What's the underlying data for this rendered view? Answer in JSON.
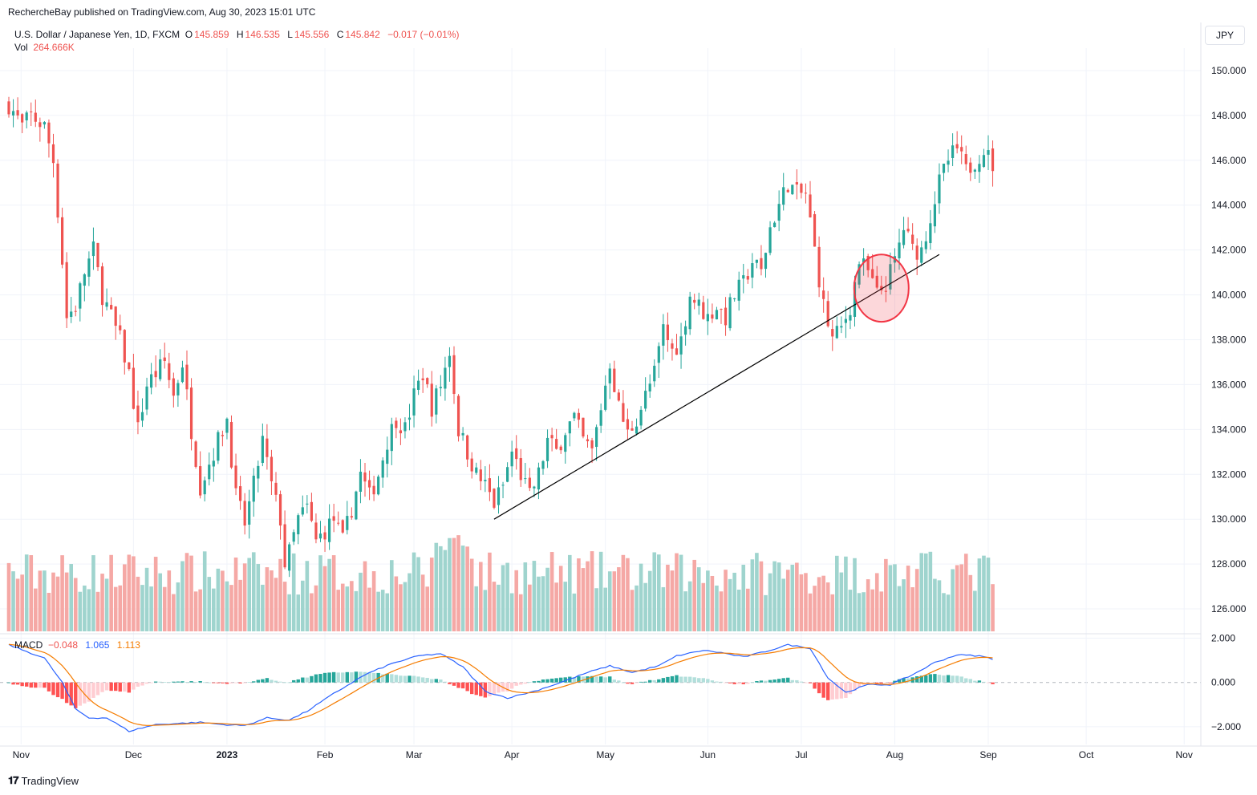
{
  "header": {
    "published": "RechercheBay published on TradingView.com, Aug 30, 2023 15:01 UTC",
    "symbol": "U.S. Dollar / Japanese Yen, 1D, FXCM",
    "open_label": "O",
    "open": "145.859",
    "high_label": "H",
    "high": "146.535",
    "low_label": "L",
    "low": "145.556",
    "close_label": "C",
    "close": "145.842",
    "change": "−0.017 (−0.01%)",
    "vol_label": "Vol",
    "vol": "264.666K",
    "currency": "JPY"
  },
  "macd_legend": {
    "label": "MACD",
    "hist": "−0.048",
    "macd": "1.065",
    "signal": "1.113"
  },
  "brand": "TradingView",
  "colors": {
    "up": "#26a69a",
    "down": "#ef5350",
    "volUp": "#9fd4ce",
    "volDown": "#f5a8a5",
    "macd": "#2962ff",
    "signal": "#f57c00",
    "trendline": "#000000",
    "circle": "#f23645"
  },
  "chart_data": {
    "type": "candlestick",
    "price_axis": {
      "min": 125,
      "max": 151,
      "ticks": [
        "150.000",
        "148.000",
        "146.000",
        "144.000",
        "142.000",
        "140.000",
        "138.000",
        "136.000",
        "134.000",
        "132.000",
        "130.000",
        "128.000",
        "126.000"
      ]
    },
    "macd_axis": {
      "min": -2.8,
      "max": 2.2,
      "ticks": [
        "2.000",
        "0.000",
        "−2.000"
      ]
    },
    "time_labels": [
      "Nov",
      "Dec",
      "2023",
      "Feb",
      "Mar",
      "Apr",
      "May",
      "Jun",
      "Jul",
      "Aug",
      "Sep",
      "Oct",
      "Nov"
    ],
    "anchors": [
      [
        0,
        148.5
      ],
      [
        3,
        147.5
      ],
      [
        5,
        148.0
      ],
      [
        8,
        147.5
      ],
      [
        10,
        146.0
      ],
      [
        12,
        141.5
      ],
      [
        13,
        139.0
      ],
      [
        15,
        139.5
      ],
      [
        17,
        141.0
      ],
      [
        19,
        142.0
      ],
      [
        21,
        140.0
      ],
      [
        23,
        139.0
      ],
      [
        25,
        138.0
      ],
      [
        27,
        136.5
      ],
      [
        29,
        134.0
      ],
      [
        31,
        136.0
      ],
      [
        33,
        136.5
      ],
      [
        35,
        137.0
      ],
      [
        37,
        135.5
      ],
      [
        39,
        137.0
      ],
      [
        41,
        134.0
      ],
      [
        43,
        131.5
      ],
      [
        45,
        132.5
      ],
      [
        47,
        133.5
      ],
      [
        49,
        134.5
      ],
      [
        51,
        131.0
      ],
      [
        53,
        129.8
      ],
      [
        55,
        131.5
      ],
      [
        57,
        133.5
      ],
      [
        59,
        131.5
      ],
      [
        61,
        130.0
      ],
      [
        62,
        128.0
      ],
      [
        63,
        128.5
      ],
      [
        65,
        130.0
      ],
      [
        67,
        130.5
      ],
      [
        69,
        129.0
      ],
      [
        71,
        129.5
      ],
      [
        73,
        130.0
      ],
      [
        75,
        129.0
      ],
      [
        77,
        130.5
      ],
      [
        79,
        132.0
      ],
      [
        81,
        131.0
      ],
      [
        83,
        132.0
      ],
      [
        85,
        133.5
      ],
      [
        87,
        134.5
      ],
      [
        89,
        134.0
      ],
      [
        91,
        135.5
      ],
      [
        93,
        136.5
      ],
      [
        95,
        135.0
      ],
      [
        97,
        136.0
      ],
      [
        99,
        137.5
      ],
      [
        101,
        134.0
      ],
      [
        103,
        133.0
      ],
      [
        105,
        132.0
      ],
      [
        107,
        131.5
      ],
      [
        109,
        130.7
      ],
      [
        111,
        131.5
      ],
      [
        113,
        133.0
      ],
      [
        115,
        132.0
      ],
      [
        117,
        131.0
      ],
      [
        119,
        132.0
      ],
      [
        121,
        133.5
      ],
      [
        123,
        133.0
      ],
      [
        125,
        134.0
      ],
      [
        127,
        134.5
      ],
      [
        129,
        133.5
      ],
      [
        131,
        133.0
      ],
      [
        133,
        135.0
      ],
      [
        135,
        137.0
      ],
      [
        137,
        135.0
      ],
      [
        139,
        133.8
      ],
      [
        141,
        134.5
      ],
      [
        143,
        135.5
      ],
      [
        145,
        136.5
      ],
      [
        147,
        138.5
      ],
      [
        149,
        137.5
      ],
      [
        151,
        138.0
      ],
      [
        153,
        140.0
      ],
      [
        155,
        139.5
      ],
      [
        157,
        139.0
      ],
      [
        159,
        139.5
      ],
      [
        161,
        139.0
      ],
      [
        163,
        140.0
      ],
      [
        165,
        140.5
      ],
      [
        167,
        141.5
      ],
      [
        169,
        141.0
      ],
      [
        171,
        143.0
      ],
      [
        173,
        144.0
      ],
      [
        175,
        145.0
      ],
      [
        177,
        144.5
      ],
      [
        179,
        144.5
      ],
      [
        181,
        142.0
      ],
      [
        183,
        139.5
      ],
      [
        185,
        138.0
      ],
      [
        187,
        138.5
      ],
      [
        189,
        139.5
      ],
      [
        191,
        141.5
      ],
      [
        193,
        141.0
      ],
      [
        195,
        140.0
      ],
      [
        197,
        140.5
      ],
      [
        199,
        141.5
      ],
      [
        201,
        143.0
      ],
      [
        203,
        142.0
      ],
      [
        205,
        142.0
      ],
      [
        207,
        143.5
      ],
      [
        209,
        145.0
      ],
      [
        211,
        146.0
      ],
      [
        213,
        146.5
      ],
      [
        215,
        145.5
      ],
      [
        217,
        146.0
      ],
      [
        219,
        146.5
      ],
      [
        221,
        145.8
      ]
    ],
    "volume": {
      "min": 0,
      "max": 5500000
    },
    "macd_anchors": [
      [
        0,
        1.7
      ],
      [
        8,
        1.1
      ],
      [
        12,
        0.0
      ],
      [
        15,
        -1.2
      ],
      [
        18,
        -1.6
      ],
      [
        22,
        -1.6
      ],
      [
        27,
        -2.2
      ],
      [
        33,
        -1.9
      ],
      [
        38,
        -1.85
      ],
      [
        43,
        -1.8
      ],
      [
        48,
        -1.9
      ],
      [
        53,
        -1.95
      ],
      [
        58,
        -1.6
      ],
      [
        63,
        -1.7
      ],
      [
        67,
        -1.3
      ],
      [
        73,
        -0.5
      ],
      [
        80,
        0.35
      ],
      [
        86,
        0.85
      ],
      [
        92,
        1.2
      ],
      [
        97,
        1.3
      ],
      [
        102,
        0.7
      ],
      [
        107,
        -0.4
      ],
      [
        112,
        -0.7
      ],
      [
        118,
        -0.4
      ],
      [
        124,
        0.0
      ],
      [
        130,
        0.45
      ],
      [
        135,
        0.75
      ],
      [
        140,
        0.45
      ],
      [
        146,
        0.75
      ],
      [
        150,
        1.2
      ],
      [
        156,
        1.45
      ],
      [
        160,
        1.35
      ],
      [
        165,
        1.15
      ],
      [
        170,
        1.4
      ],
      [
        175,
        1.7
      ],
      [
        180,
        1.55
      ],
      [
        184,
        0.2
      ],
      [
        188,
        -0.45
      ],
      [
        193,
        -0.1
      ],
      [
        198,
        -0.1
      ],
      [
        203,
        0.35
      ],
      [
        208,
        0.9
      ],
      [
        213,
        1.25
      ],
      [
        218,
        1.2
      ],
      [
        221,
        1.065
      ]
    ],
    "trendline": {
      "from": [
        109,
        130.0
      ],
      "to": [
        209,
        141.8
      ]
    },
    "highlight_circle": {
      "center": [
        196,
        140.3
      ],
      "radius_x": 3.5,
      "radius_y": 2.0
    }
  }
}
